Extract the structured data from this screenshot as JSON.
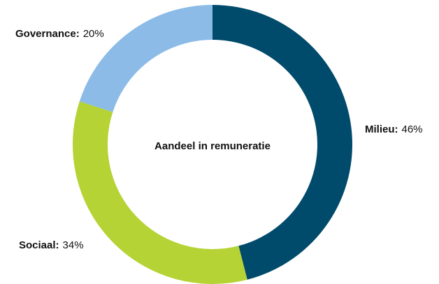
{
  "chart_data": {
    "type": "donut",
    "title": "Aandeel in remuneratie",
    "categories": [
      "Milieu:",
      "Sociaal:",
      "Governance:"
    ],
    "values": [
      46,
      34,
      20
    ],
    "value_labels": [
      "46%",
      "34%",
      "20%"
    ],
    "colors": [
      "#004a6b",
      "#b5d334",
      "#8bbbe6"
    ]
  }
}
